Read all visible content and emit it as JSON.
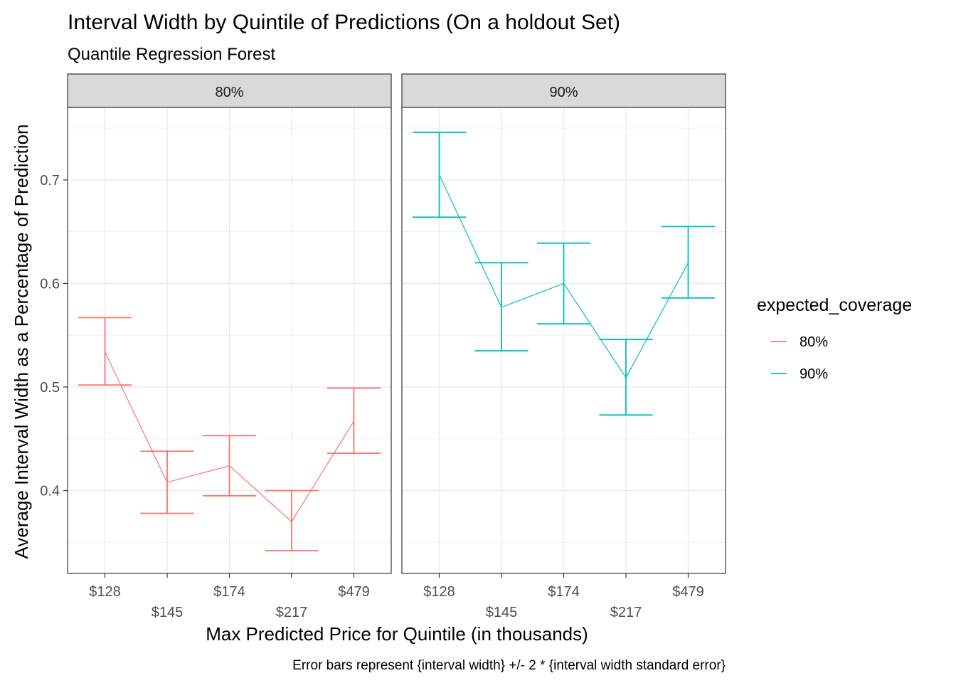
{
  "chart_data": {
    "type": "line",
    "title": "Interval Width by Quintile of Predictions (On a holdout Set)",
    "subtitle": "Quantile Regression Forest",
    "xlabel": "Max Predicted Price for Quintile (in thousands)",
    "ylabel": "Average Interval Width as a Percentage of Prediction",
    "caption": "Error bars represent {interval width} +/- 2 * {interval width standard error}",
    "categories": [
      "$128",
      "$145",
      "$174",
      "$217",
      "$479"
    ],
    "ylim": [
      0.32,
      0.77
    ],
    "yticks": [
      0.4,
      0.5,
      0.6,
      0.7
    ],
    "ytick_labels": [
      "0.4",
      "0.5",
      "0.6",
      "0.7"
    ],
    "grid": true,
    "legend": {
      "title": "expected_coverage",
      "position": "right",
      "entries": [
        {
          "label": "80%",
          "color": "#F8766D"
        },
        {
          "label": "90%",
          "color": "#00BFC4"
        }
      ]
    },
    "panels": [
      {
        "label": "80%",
        "color": "#F8766D",
        "values": [
          0.534,
          0.408,
          0.424,
          0.37,
          0.467
        ],
        "lower": [
          0.502,
          0.378,
          0.395,
          0.342,
          0.436
        ],
        "upper": [
          0.567,
          0.438,
          0.453,
          0.4,
          0.499
        ]
      },
      {
        "label": "90%",
        "color": "#00BFC4",
        "values": [
          0.705,
          0.577,
          0.6,
          0.509,
          0.62
        ],
        "lower": [
          0.664,
          0.535,
          0.561,
          0.473,
          0.586
        ],
        "upper": [
          0.746,
          0.62,
          0.639,
          0.546,
          0.655
        ]
      }
    ]
  }
}
